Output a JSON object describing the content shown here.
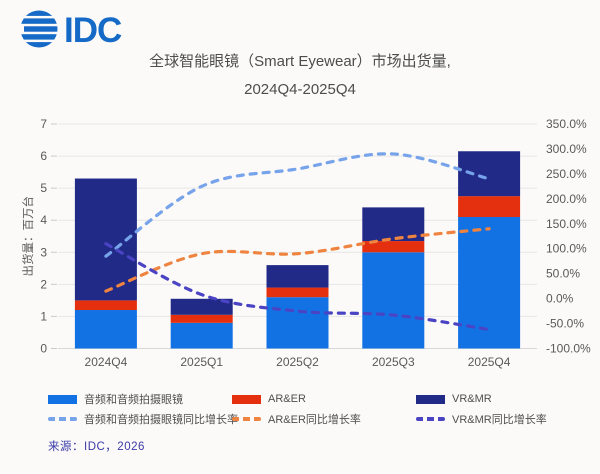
{
  "page": {
    "logo_text": "IDC",
    "logo_color": "#1569C7",
    "title_line1": "全球智能眼镜（Smart Eyewear）市场出货量,",
    "title_line2": "2024Q4-2025Q4",
    "source": "来源：IDC，2026",
    "background": "#FBFAF8"
  },
  "chart_data": {
    "type": "bar",
    "subtype": "stacked-bar-with-yoy-growth-lines",
    "title": "全球智能眼镜（Smart Eyewear）市场出货量, 2024Q4-2025Q4",
    "categories": [
      "2024Q4",
      "2025Q1",
      "2025Q2",
      "2025Q3",
      "2025Q4"
    ],
    "bar_series": [
      {
        "name": "音频和音频拍摄眼镜",
        "color": "#1272E4",
        "values": [
          1.2,
          0.8,
          1.6,
          3.0,
          4.1
        ]
      },
      {
        "name": "AR&ER",
        "color": "#E5300F",
        "values": [
          0.3,
          0.25,
          0.3,
          0.35,
          0.65
        ]
      },
      {
        "name": "VR&MR",
        "color": "#222A87",
        "values": [
          3.8,
          0.5,
          0.7,
          1.05,
          1.4
        ]
      }
    ],
    "line_series": [
      {
        "name": "音频和音频拍摄眼镜同比增长率",
        "color": "#76A3EA",
        "values_pct": [
          85,
          225,
          260,
          290,
          240
        ]
      },
      {
        "name": "AR&ER同比增长率",
        "color": "#EE8440",
        "values_pct": [
          15,
          90,
          90,
          120,
          140
        ]
      },
      {
        "name": "VR&MR同比增长率",
        "color": "#4A44C4",
        "values_pct": [
          110,
          8,
          -25,
          -33,
          -62
        ]
      }
    ],
    "left_axis": {
      "title": "出货量：百万台",
      "min": 0,
      "max": 7,
      "step": 1
    },
    "right_axis": {
      "min": -100,
      "max": 350,
      "step": 50,
      "suffix": "%"
    },
    "bar_totals": [
      5.3,
      1.55,
      2.6,
      4.4,
      6.15
    ],
    "grid": "horizontal lines at left-axis integers",
    "legend_position": "bottom",
    "colors": {
      "axis_text": "#595959",
      "grid_line": "#E6E6E6",
      "baseline": "#D8D8D8",
      "tick_mark": "#CCCCCC"
    }
  }
}
